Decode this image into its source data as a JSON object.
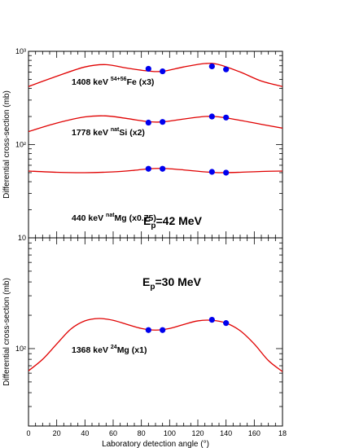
{
  "chart_data": [
    {
      "type": "line",
      "panel": "top",
      "title": "E_p=42 MeV",
      "title_main": "E",
      "title_sub": "p",
      "title_rest": "=42 MeV",
      "xlabel": "Laboratory detection angle (°)",
      "ylabel": "Differential cross-section (mb)",
      "xlim": [
        0,
        180
      ],
      "ylim": [
        10,
        1000
      ],
      "yscale": "log",
      "y_tick_labels": [
        "10",
        "10²",
        "10³"
      ],
      "x_tick_labels": [],
      "series": [
        {
          "label_energy": "1408 keV ",
          "label_sup": "54+56",
          "label_rest": "Fe (x3)",
          "curve": [
            [
              0,
              420
            ],
            [
              20,
              540
            ],
            [
              40,
              680
            ],
            [
              55,
              720
            ],
            [
              70,
              660
            ],
            [
              85,
              615
            ],
            [
              95,
              610
            ],
            [
              110,
              680
            ],
            [
              125,
              740
            ],
            [
              135,
              720
            ],
            [
              150,
              600
            ],
            [
              165,
              480
            ],
            [
              180,
              420
            ]
          ],
          "points": [
            [
              85,
              650
            ],
            [
              95,
              610
            ],
            [
              130,
              690
            ],
            [
              140,
              640
            ]
          ]
        },
        {
          "label_energy": "1778 keV ",
          "label_sup": "nat",
          "label_rest": "Si (x2)",
          "curve": [
            [
              0,
              138
            ],
            [
              20,
              170
            ],
            [
              40,
              198
            ],
            [
              55,
              203
            ],
            [
              70,
              190
            ],
            [
              85,
              176
            ],
            [
              95,
              175
            ],
            [
              110,
              188
            ],
            [
              125,
              200
            ],
            [
              135,
              198
            ],
            [
              150,
              182
            ],
            [
              165,
              165
            ],
            [
              180,
              150
            ]
          ],
          "points": [
            [
              85,
              172
            ],
            [
              95,
              175
            ],
            [
              130,
              200
            ],
            [
              140,
              195
            ]
          ]
        },
        {
          "label_energy": "440 keV ",
          "label_sup": "nat",
          "label_rest": "Mg (x0.75)",
          "curve": [
            [
              0,
              52
            ],
            [
              20,
              50.5
            ],
            [
              40,
              50
            ],
            [
              60,
              51
            ],
            [
              75,
              53
            ],
            [
              85,
              55
            ],
            [
              95,
              55.5
            ],
            [
              110,
              53.5
            ],
            [
              125,
              51
            ],
            [
              135,
              50
            ],
            [
              150,
              50.5
            ],
            [
              165,
              51.5
            ],
            [
              180,
              52
            ]
          ],
          "points": [
            [
              85,
              55
            ],
            [
              95,
              55
            ],
            [
              130,
              51
            ],
            [
              140,
              50
            ]
          ]
        }
      ]
    },
    {
      "type": "line",
      "panel": "bottom",
      "title": "E_p=30 MeV",
      "title_main": "E",
      "title_sub": "p",
      "title_rest": "=30 MeV",
      "xlabel": "Laboratory detection angle (°)",
      "ylabel": "Differential cross-section (mb)",
      "xlim": [
        0,
        180
      ],
      "ylim": [
        20,
        1000
      ],
      "yscale": "log",
      "y_tick_labels": [
        "10²"
      ],
      "x_tick_labels": [
        "0",
        "20",
        "40",
        "60",
        "80",
        "100",
        "120",
        "140",
        "160",
        "18"
      ],
      "series": [
        {
          "label_energy": "1368 keV ",
          "label_sup": "24",
          "label_rest": "Mg (x1)",
          "curve": [
            [
              0,
              63
            ],
            [
              10,
              80
            ],
            [
              20,
              110
            ],
            [
              30,
              150
            ],
            [
              40,
              178
            ],
            [
              50,
              187
            ],
            [
              60,
              180
            ],
            [
              70,
              165
            ],
            [
              80,
              152
            ],
            [
              90,
              147
            ],
            [
              100,
              152
            ],
            [
              110,
              165
            ],
            [
              120,
              178
            ],
            [
              130,
              180
            ],
            [
              140,
              170
            ],
            [
              150,
              145
            ],
            [
              160,
              110
            ],
            [
              170,
              78
            ],
            [
              180,
              62
            ]
          ],
          "points": [
            [
              85,
              147
            ],
            [
              95,
              147
            ],
            [
              130,
              182
            ],
            [
              140,
              170
            ]
          ]
        }
      ]
    }
  ]
}
